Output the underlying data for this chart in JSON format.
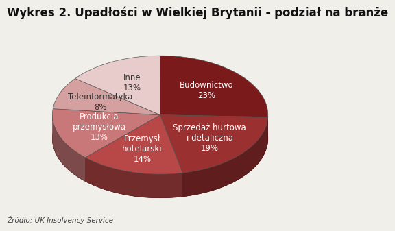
{
  "title": "Wykres 2. Upadłości w Wielkiej Brytanii - podział na branże",
  "source": "Źródło: UK Insolvency Service",
  "slices": [
    {
      "label": "Budownictwo\n23%",
      "value": 23,
      "color": "#7B1A1A",
      "label_color": "white"
    },
    {
      "label": "Sprzedaż hurtowa\ni detaliczna\n19%",
      "value": 19,
      "color": "#9B3030",
      "label_color": "white"
    },
    {
      "label": "Przemysł\nhotelarski\n14%",
      "value": 14,
      "color": "#B84848",
      "label_color": "white"
    },
    {
      "label": "Produkcja\nprzemysłowa\n13%",
      "value": 13,
      "color": "#C87878",
      "label_color": "white"
    },
    {
      "label": "Teleinformatyka\n8%",
      "value": 8,
      "color": "#D4A0A0",
      "label_color": "#333333"
    },
    {
      "label": "Inne\n13%",
      "value": 13,
      "color": "#E8CCCC",
      "label_color": "#333333"
    }
  ],
  "startangle": 90,
  "background_color": "#f0efea",
  "title_fontsize": 12,
  "label_fontsize": 8.5,
  "source_fontsize": 7.5
}
